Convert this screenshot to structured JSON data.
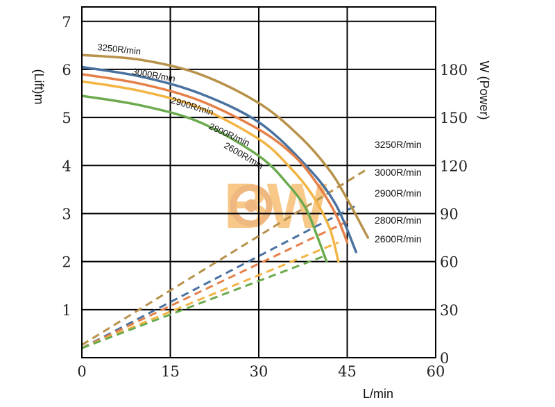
{
  "chart_data": {
    "type": "line",
    "x_axis": {
      "label": "L/min",
      "range": [
        0,
        60
      ],
      "ticks": [
        "0",
        "15",
        "30",
        "45",
        "60"
      ]
    },
    "y_axis_left": {
      "label": "(Lift)m",
      "range": [
        0,
        7
      ],
      "ticks": [
        "1",
        "2",
        "3",
        "4",
        "5",
        "6",
        "7"
      ]
    },
    "y_axis_right": {
      "label": "W (Power)",
      "range": [
        0,
        210
      ],
      "ticks": [
        "0",
        "30",
        "60",
        "90",
        "120",
        "150",
        "180"
      ]
    },
    "grid": true,
    "watermark": "BW",
    "lift_series": [
      {
        "name": "3250R/min",
        "color": "#B8924A",
        "x": [
          0,
          10,
          20,
          30,
          37,
          42,
          45,
          48.5
        ],
        "y": [
          6.3,
          6.2,
          5.9,
          5.3,
          4.6,
          3.9,
          3.3,
          2.5
        ]
      },
      {
        "name": "3000R/min",
        "color": "#4A72A0",
        "x": [
          0,
          10,
          20,
          30,
          38,
          43,
          46.5
        ],
        "y": [
          6.05,
          5.85,
          5.5,
          4.9,
          4.0,
          3.2,
          2.2
        ]
      },
      {
        "name": "2900R/min",
        "color": "#E58049",
        "x": [
          0,
          10,
          20,
          30,
          36,
          40,
          43,
          45
        ],
        "y": [
          5.9,
          5.7,
          5.35,
          4.75,
          4.2,
          3.6,
          3.0,
          2.4
        ]
      },
      {
        "name": "2800R/min",
        "color": "#F2B443",
        "x": [
          0,
          10,
          20,
          30,
          35,
          39,
          42,
          43.5
        ],
        "y": [
          5.75,
          5.55,
          5.2,
          4.55,
          4.0,
          3.4,
          2.7,
          2.0
        ]
      },
      {
        "name": "2600R/min",
        "color": "#6BAA4F",
        "x": [
          0,
          10,
          20,
          30,
          35,
          38,
          40,
          41.5
        ],
        "y": [
          5.45,
          5.25,
          4.9,
          4.2,
          3.6,
          3.1,
          2.5,
          2.0
        ]
      }
    ],
    "power_series": [
      {
        "name": "3250R/min",
        "color": "#B8924A",
        "x": [
          0,
          48.5
        ],
        "y": [
          8,
          118
        ]
      },
      {
        "name": "3000R/min",
        "color": "#4A72A0",
        "x": [
          0,
          46.5
        ],
        "y": [
          6,
          95
        ]
      },
      {
        "name": "2900R/min",
        "color": "#E58049",
        "x": [
          0,
          45
        ],
        "y": [
          6,
          85
        ]
      },
      {
        "name": "2800R/min",
        "color": "#F2B443",
        "x": [
          0,
          43.5
        ],
        "y": [
          6,
          72
        ]
      },
      {
        "name": "2600R/min",
        "color": "#6BAA4F",
        "x": [
          0,
          41.5
        ],
        "y": [
          6,
          64
        ]
      }
    ]
  }
}
